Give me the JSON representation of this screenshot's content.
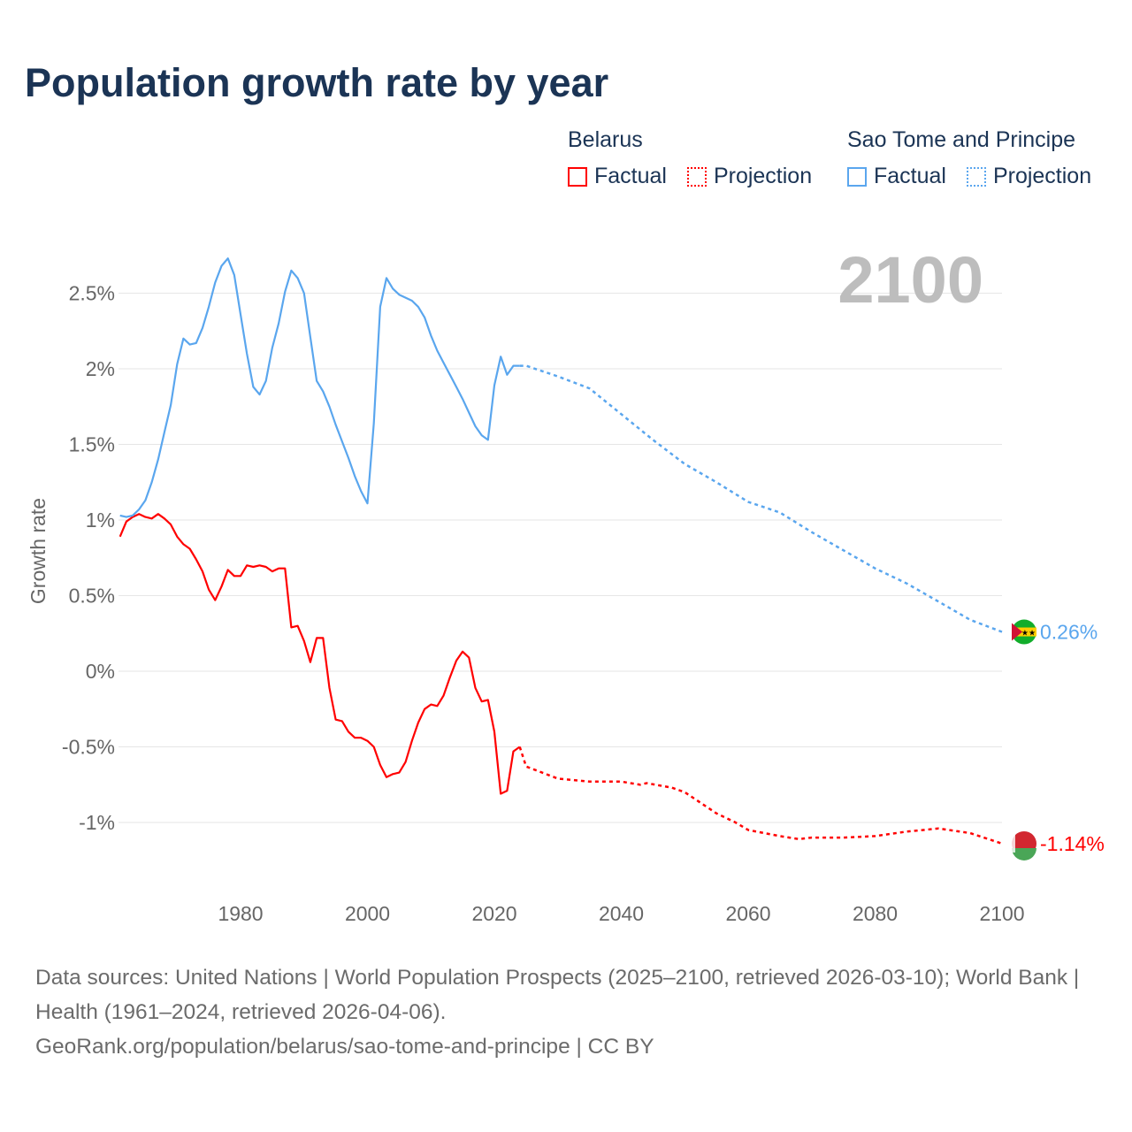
{
  "title": "Population growth rate by year",
  "legend": {
    "groups": [
      {
        "name": "Belarus",
        "factual": "Factual",
        "projection": "Projection",
        "color": "#ff0000"
      },
      {
        "name": "Sao Tome and Principe",
        "factual": "Factual",
        "projection": "Projection",
        "color": "#5aa6ee"
      }
    ]
  },
  "year_label": "2100",
  "footer": {
    "sources": "Data sources: United Nations | World Population Prospects (2025–2100, retrieved 2026-03-10); World Bank | Health (1961–2024, retrieved 2026-04-06).",
    "credit": "GeoRank.org/population/belarus/sao-tome-and-principe | CC BY"
  },
  "chart_data": {
    "type": "line",
    "title": "Population growth rate by year",
    "ylabel": "Growth rate",
    "xlabel": "",
    "xlim": [
      1961,
      2100
    ],
    "ylim": [
      -1.35,
      2.9
    ],
    "grid": true,
    "x_ticks": [
      1980,
      2000,
      2020,
      2040,
      2060,
      2080,
      2100
    ],
    "x_tick_labels": [
      "1980",
      "2000",
      "2020",
      "2040",
      "2060",
      "2080",
      "2100"
    ],
    "y_ticks": [
      -1,
      -0.5,
      0,
      0.5,
      1,
      1.5,
      2,
      2.5
    ],
    "y_tick_labels": [
      "-1%",
      "-0.5%",
      "0%",
      "0.5%",
      "1%",
      "1.5%",
      "2%",
      "2.5%"
    ],
    "series": [
      {
        "name": "Belarus",
        "color": "#ff0000",
        "end_label": "-1.14%",
        "factual": {
          "x": [
            1961,
            1962,
            1963,
            1964,
            1965,
            1966,
            1967,
            1968,
            1969,
            1970,
            1971,
            1972,
            1973,
            1974,
            1975,
            1976,
            1977,
            1978,
            1979,
            1980,
            1981,
            1982,
            1983,
            1984,
            1985,
            1986,
            1987,
            1988,
            1989,
            1990,
            1991,
            1992,
            1993,
            1994,
            1995,
            1996,
            1997,
            1998,
            1999,
            2000,
            2001,
            2002,
            2003,
            2004,
            2005,
            2006,
            2007,
            2008,
            2009,
            2010,
            2011,
            2012,
            2013,
            2014,
            2015,
            2016,
            2017,
            2018,
            2019,
            2020,
            2021,
            2022,
            2023,
            2024
          ],
          "y": [
            0.89,
            0.99,
            1.02,
            1.04,
            1.02,
            1.01,
            1.04,
            1.01,
            0.97,
            0.89,
            0.84,
            0.81,
            0.74,
            0.66,
            0.54,
            0.47,
            0.56,
            0.67,
            0.63,
            0.63,
            0.7,
            0.69,
            0.7,
            0.69,
            0.66,
            0.68,
            0.68,
            0.29,
            0.3,
            0.2,
            0.06,
            0.22,
            0.22,
            -0.11,
            -0.32,
            -0.33,
            -0.4,
            -0.44,
            -0.44,
            -0.46,
            -0.5,
            -0.62,
            -0.7,
            -0.68,
            -0.67,
            -0.6,
            -0.46,
            -0.34,
            -0.25,
            -0.22,
            -0.23,
            -0.16,
            -0.04,
            0.07,
            0.13,
            0.09,
            -0.11,
            -0.2,
            -0.19,
            -0.4,
            -0.81,
            -0.79,
            -0.53,
            -0.5
          ]
        },
        "projection": {
          "x": [
            2024,
            2025,
            2030,
            2035,
            2040,
            2043,
            2044,
            2048,
            2050,
            2055,
            2058,
            2060,
            2065,
            2068,
            2070,
            2075,
            2080,
            2085,
            2090,
            2095,
            2100
          ],
          "y": [
            -0.5,
            -0.63,
            -0.71,
            -0.73,
            -0.73,
            -0.75,
            -0.74,
            -0.77,
            -0.8,
            -0.94,
            -1.0,
            -1.05,
            -1.09,
            -1.11,
            -1.1,
            -1.1,
            -1.09,
            -1.06,
            -1.04,
            -1.07,
            -1.14
          ]
        }
      },
      {
        "name": "Sao Tome and Principe",
        "color": "#5aa6ee",
        "end_label": "0.26%",
        "factual": {
          "x": [
            1961,
            1962,
            1963,
            1964,
            1965,
            1966,
            1967,
            1968,
            1969,
            1970,
            1971,
            1972,
            1973,
            1974,
            1975,
            1976,
            1977,
            1978,
            1979,
            1980,
            1981,
            1982,
            1983,
            1984,
            1985,
            1986,
            1987,
            1988,
            1989,
            1990,
            1991,
            1992,
            1993,
            1994,
            1995,
            1996,
            1997,
            1998,
            1999,
            2000,
            2001,
            2002,
            2003,
            2004,
            2005,
            2006,
            2007,
            2008,
            2009,
            2010,
            2011,
            2012,
            2013,
            2014,
            2015,
            2016,
            2017,
            2018,
            2019,
            2020,
            2021,
            2022,
            2023,
            2024
          ],
          "y": [
            1.03,
            1.02,
            1.03,
            1.07,
            1.13,
            1.25,
            1.4,
            1.58,
            1.76,
            2.03,
            2.2,
            2.16,
            2.17,
            2.27,
            2.41,
            2.57,
            2.68,
            2.73,
            2.62,
            2.36,
            2.1,
            1.88,
            1.83,
            1.92,
            2.14,
            2.3,
            2.51,
            2.65,
            2.6,
            2.5,
            2.21,
            1.92,
            1.85,
            1.75,
            1.63,
            1.52,
            1.41,
            1.29,
            1.19,
            1.11,
            1.64,
            2.41,
            2.6,
            2.53,
            2.49,
            2.47,
            2.45,
            2.41,
            2.34,
            2.22,
            2.12,
            2.04,
            1.96,
            1.88,
            1.8,
            1.71,
            1.62,
            1.56,
            1.53,
            1.89,
            2.08,
            1.96,
            2.02,
            2.02
          ]
        },
        "projection": {
          "x": [
            2024,
            2025,
            2030,
            2035,
            2040,
            2045,
            2050,
            2055,
            2060,
            2065,
            2070,
            2075,
            2080,
            2085,
            2090,
            2095,
            2100
          ],
          "y": [
            2.02,
            2.02,
            1.95,
            1.87,
            1.7,
            1.53,
            1.37,
            1.25,
            1.12,
            1.05,
            0.92,
            0.8,
            0.68,
            0.58,
            0.46,
            0.34,
            0.26
          ]
        }
      }
    ]
  }
}
